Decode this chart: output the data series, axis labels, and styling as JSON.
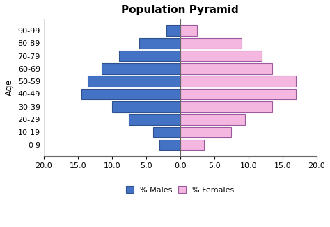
{
  "title": "Population Pyramid",
  "age_groups": [
    "0-9",
    "10-19",
    "20-29",
    "30-39",
    "40-49",
    "50-59",
    "60-69",
    "70-79",
    "80-89",
    "90-99"
  ],
  "males": [
    3.0,
    4.0,
    7.5,
    10.0,
    14.5,
    13.5,
    11.5,
    9.0,
    6.0,
    2.0
  ],
  "females": [
    3.5,
    7.5,
    9.5,
    13.5,
    17.0,
    17.0,
    13.5,
    12.0,
    9.0,
    2.5
  ],
  "male_color": "#4472C4",
  "female_color": "#F4B8E0",
  "male_edge_color": "#2F528F",
  "female_edge_color": "#9B59A0",
  "xlim": [
    -20,
    20
  ],
  "xticks": [
    -20,
    -15,
    -10,
    -5,
    0,
    5,
    10,
    15,
    20
  ],
  "xticklabels": [
    "20.0",
    "15.0",
    "10.0",
    "5.0",
    "0.0",
    "5.0",
    "10.0",
    "15.0",
    "20.0"
  ],
  "ylabel": "Age",
  "bar_height": 0.85,
  "legend_male_label": "% Males",
  "legend_female_label": "% Females",
  "title_fontsize": 11,
  "axis_fontsize": 8,
  "label_fontsize": 9
}
